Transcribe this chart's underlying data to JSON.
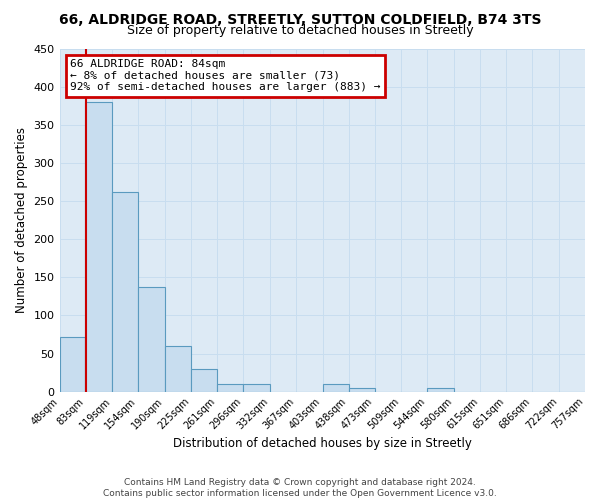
{
  "title": "66, ALDRIDGE ROAD, STREETLY, SUTTON COLDFIELD, B74 3TS",
  "subtitle": "Size of property relative to detached houses in Streetly",
  "xlabel": "Distribution of detached houses by size in Streetly",
  "ylabel": "Number of detached properties",
  "footer_line1": "Contains HM Land Registry data © Crown copyright and database right 2024.",
  "footer_line2": "Contains public sector information licensed under the Open Government Licence v3.0.",
  "bin_labels": [
    "48sqm",
    "83sqm",
    "119sqm",
    "154sqm",
    "190sqm",
    "225sqm",
    "261sqm",
    "296sqm",
    "332sqm",
    "367sqm",
    "403sqm",
    "438sqm",
    "473sqm",
    "509sqm",
    "544sqm",
    "580sqm",
    "615sqm",
    "651sqm",
    "686sqm",
    "722sqm",
    "757sqm"
  ],
  "bar_values": [
    72,
    380,
    262,
    137,
    60,
    30,
    10,
    10,
    0,
    0,
    10,
    5,
    0,
    0,
    5,
    0,
    0,
    0,
    0,
    0,
    3
  ],
  "bar_color": "#c8ddef",
  "bar_edge_color": "#5a9abf",
  "ylim": [
    0,
    450
  ],
  "yticks": [
    0,
    50,
    100,
    150,
    200,
    250,
    300,
    350,
    400,
    450
  ],
  "red_line_color": "#cc0000",
  "annotation_title": "66 ALDRIDGE ROAD: 84sqm",
  "annotation_line1": "← 8% of detached houses are smaller (73)",
  "annotation_line2": "92% of semi-detached houses are larger (883) →",
  "annotation_box_color": "#ffffff",
  "annotation_border_color": "#cc0000",
  "grid_color": "#c8ddef",
  "bg_color": "#ddeaf5",
  "plot_bg_color": "#ddeaf5",
  "title_fontsize": 10,
  "subtitle_fontsize": 9
}
